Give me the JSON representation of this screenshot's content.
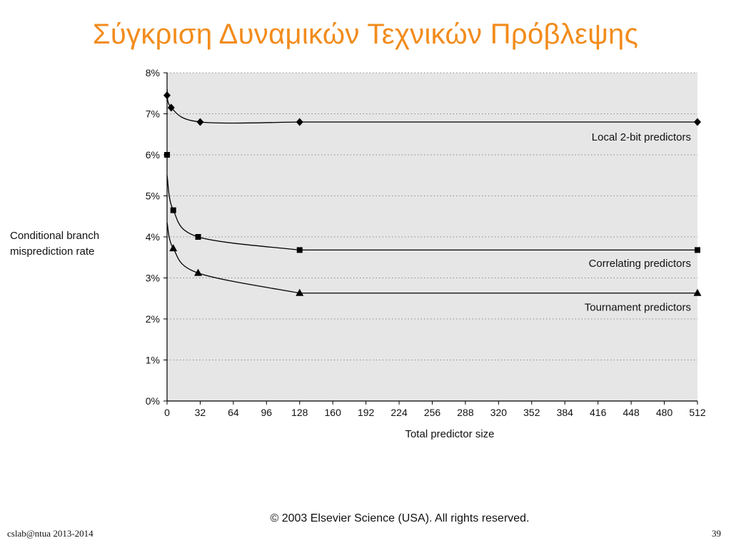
{
  "slide": {
    "title": "Σύγκριση Δυναμικών Τεχνικών Πρόβλεψης",
    "copyright": "© 2003 Elsevier Science (USA). All rights reserved.",
    "footer_left": "cslab@ntua 2013-2014",
    "page_number": "39"
  },
  "colors": {
    "title": "#f28c1c",
    "plot_background": "#e6e6e6",
    "series_line": "#000000",
    "grid": "#8a8a8a"
  },
  "chart_data": {
    "type": "line",
    "title": "",
    "xlabel": "Total predictor size",
    "ylabel": "Conditional branch\nmisprediction rate",
    "xlim": [
      0,
      512
    ],
    "ylim": [
      0,
      8
    ],
    "x_ticks": [
      "0",
      "32",
      "64",
      "96",
      "128",
      "160",
      "192",
      "224",
      "256",
      "288",
      "320",
      "352",
      "384",
      "416",
      "448",
      "480",
      "512"
    ],
    "y_ticks": [
      "0%",
      "1%",
      "2%",
      "3%",
      "4%",
      "5%",
      "6%",
      "7%",
      "8%"
    ],
    "grid": "horizontal dotted",
    "series": [
      {
        "name": "Local 2-bit predictors",
        "marker": "diamond",
        "x": [
          0,
          4,
          32,
          128,
          512
        ],
        "y": [
          7.45,
          7.15,
          6.8,
          6.8,
          6.8
        ]
      },
      {
        "name": "Correlating predictors",
        "marker": "square",
        "x": [
          0,
          6,
          30,
          128,
          512
        ],
        "y": [
          6.0,
          4.65,
          4.0,
          3.68,
          3.68
        ]
      },
      {
        "name": "Tournament predictors",
        "marker": "triangle",
        "x": [
          6,
          30,
          128,
          512
        ],
        "y": [
          3.72,
          3.12,
          2.63,
          2.63
        ]
      }
    ]
  }
}
